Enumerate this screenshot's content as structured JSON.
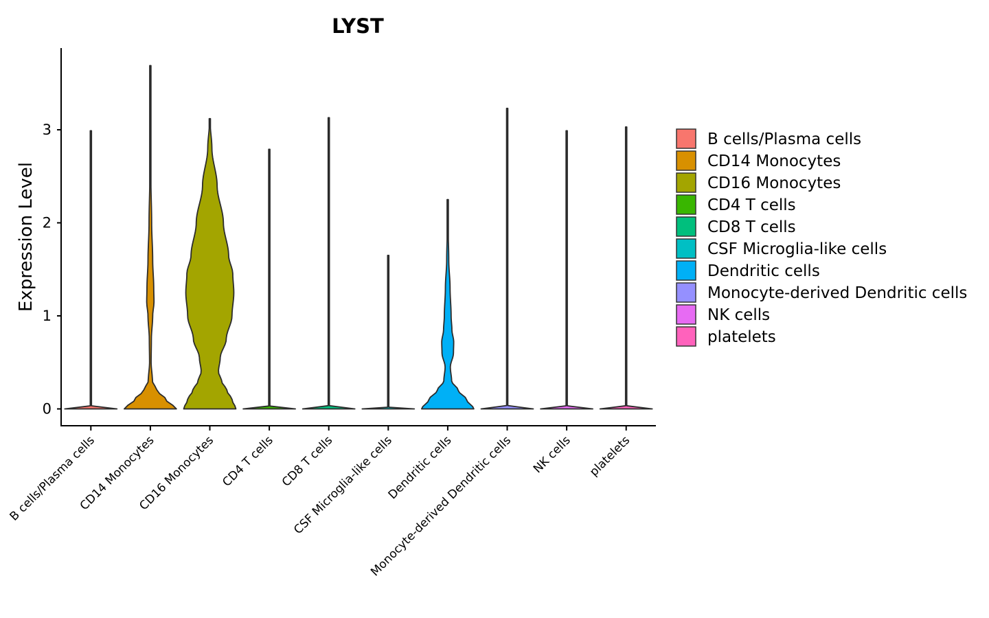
{
  "chart_data": {
    "type": "violin",
    "title": "LYST",
    "xlabel": "",
    "ylabel": "Expression Level",
    "ylim": [
      -0.18,
      3.9
    ],
    "yticks": [
      "0",
      "1",
      "2",
      "3"
    ],
    "categories": [
      "B cells/Plasma cells",
      "CD14 Monocytes",
      "CD16 Monocytes",
      "CD4 T cells",
      "CD8 T cells",
      "CSF Microglia-like cells",
      "Dendritic cells",
      "Monocyte-derived Dendritic cells",
      "NK cells",
      "platelets"
    ],
    "colors": [
      "#F8766D",
      "#D89000",
      "#A3A500",
      "#39B600",
      "#00BF7D",
      "#00BFC4",
      "#00B0F6",
      "#9590FF",
      "#E76BF3",
      "#FF62BC"
    ],
    "max_expression": [
      2.99,
      3.69,
      3.12,
      2.79,
      3.13,
      1.65,
      2.25,
      3.23,
      2.99,
      3.03
    ],
    "density_profiles": [
      [
        [
          0,
          1.0
        ],
        [
          0.02,
          0.0
        ],
        [
          2.99,
          0.0
        ]
      ],
      [
        [
          0,
          1.0
        ],
        [
          0.1,
          0.6
        ],
        [
          0.2,
          0.25
        ],
        [
          0.3,
          0.08
        ],
        [
          0.5,
          0.03
        ],
        [
          0.75,
          0.04
        ],
        [
          1.0,
          0.09
        ],
        [
          1.15,
          0.14
        ],
        [
          1.3,
          0.13
        ],
        [
          1.6,
          0.09
        ],
        [
          2.0,
          0.05
        ],
        [
          2.5,
          0.02
        ],
        [
          3.0,
          0.005
        ],
        [
          3.69,
          0.0
        ]
      ],
      [
        [
          0,
          1.0
        ],
        [
          0.1,
          0.85
        ],
        [
          0.2,
          0.65
        ],
        [
          0.3,
          0.45
        ],
        [
          0.4,
          0.33
        ],
        [
          0.55,
          0.4
        ],
        [
          0.75,
          0.63
        ],
        [
          1.0,
          0.85
        ],
        [
          1.25,
          0.92
        ],
        [
          1.45,
          0.88
        ],
        [
          1.65,
          0.72
        ],
        [
          2.0,
          0.52
        ],
        [
          2.4,
          0.28
        ],
        [
          2.8,
          0.08
        ],
        [
          3.12,
          0.0
        ]
      ],
      [
        [
          0,
          1.0
        ],
        [
          0.02,
          0.0
        ],
        [
          2.79,
          0.0
        ]
      ],
      [
        [
          0,
          1.0
        ],
        [
          0.02,
          0.0
        ],
        [
          3.13,
          0.0
        ]
      ],
      [
        [
          0,
          1.0
        ],
        [
          0.02,
          0.0
        ],
        [
          1.65,
          0.0
        ]
      ],
      [
        [
          0,
          1.0
        ],
        [
          0.1,
          0.72
        ],
        [
          0.2,
          0.4
        ],
        [
          0.3,
          0.15
        ],
        [
          0.45,
          0.1
        ],
        [
          0.6,
          0.22
        ],
        [
          0.72,
          0.23
        ],
        [
          0.85,
          0.16
        ],
        [
          1.0,
          0.13
        ],
        [
          1.3,
          0.09
        ],
        [
          1.6,
          0.04
        ],
        [
          2.0,
          0.01
        ],
        [
          2.25,
          0.0
        ]
      ],
      [
        [
          0,
          1.0
        ],
        [
          0.02,
          0.0
        ],
        [
          3.23,
          0.0
        ]
      ],
      [
        [
          0,
          1.0
        ],
        [
          0.02,
          0.0
        ],
        [
          2.99,
          0.0
        ]
      ],
      [
        [
          0,
          1.0
        ],
        [
          0.02,
          0.0
        ],
        [
          3.03,
          0.0
        ]
      ]
    ],
    "legend": {
      "position": "right",
      "entries": [
        "B cells/Plasma cells",
        "CD14 Monocytes",
        "CD16 Monocytes",
        "CD4 T cells",
        "CD8 T cells",
        "CSF Microglia-like cells",
        "Dendritic cells",
        "Monocyte-derived Dendritic cells",
        "NK cells",
        "platelets"
      ]
    },
    "grid": false
  }
}
